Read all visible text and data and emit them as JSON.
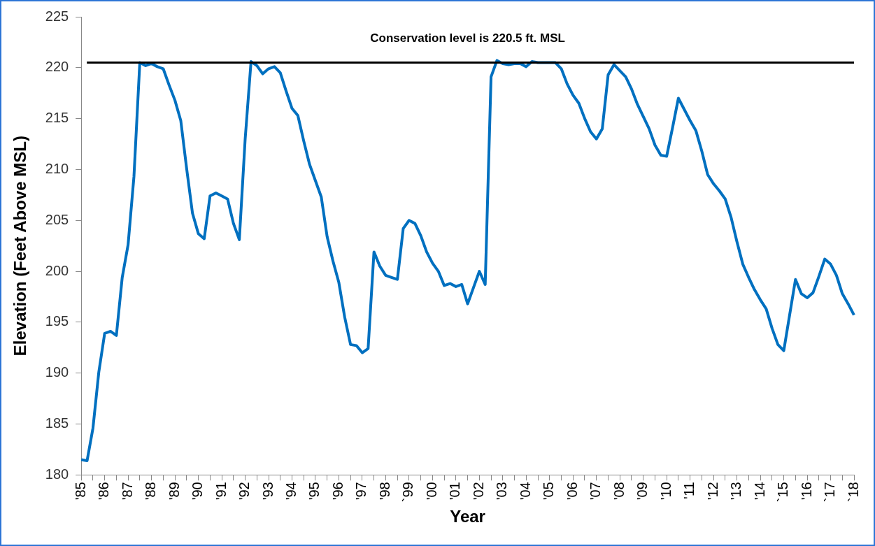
{
  "chart_data": {
    "type": "line",
    "xlabel": "Year",
    "ylabel": "Elevation (Feet Above MSL)",
    "categories": [
      "'85",
      null,
      null,
      null,
      "'86",
      null,
      null,
      null,
      "'87",
      null,
      null,
      null,
      "'88",
      null,
      null,
      null,
      "'89",
      null,
      null,
      null,
      "'90",
      null,
      null,
      null,
      "'91",
      null,
      null,
      null,
      "'92",
      null,
      null,
      null,
      "'93",
      null,
      null,
      null,
      "'94",
      null,
      null,
      null,
      "'95",
      null,
      null,
      null,
      "'96",
      null,
      null,
      null,
      "'97",
      null,
      null,
      null,
      "'98",
      null,
      null,
      null,
      "`99",
      null,
      null,
      null,
      "'00",
      null,
      null,
      null,
      "'01",
      null,
      null,
      null,
      "'02",
      null,
      null,
      null,
      "'03",
      null,
      null,
      null,
      "'04",
      null,
      null,
      null,
      "'05",
      null,
      null,
      null,
      "'06",
      null,
      null,
      null,
      "'07",
      null,
      null,
      null,
      "'08",
      null,
      null,
      null,
      "'09",
      null,
      null,
      null,
      "'10",
      null,
      null,
      null,
      "'11",
      null,
      null,
      null,
      "'12",
      null,
      null,
      null,
      "'13",
      null,
      null,
      null,
      "'14",
      null,
      null,
      null,
      "`15",
      null,
      null,
      null,
      "'16",
      null,
      null,
      null,
      "`17",
      null,
      null,
      null,
      "`18"
    ],
    "series": [
      {
        "color": "#0070c0",
        "values": [
          181.5,
          181.4,
          184.6,
          190.1,
          193.9,
          194.1,
          193.7,
          199.4,
          202.6,
          209.3,
          220.5,
          220.2,
          220.4,
          220.1,
          219.9,
          218.3,
          216.8,
          214.8,
          210.1,
          205.7,
          203.7,
          203.2,
          207.4,
          207.7,
          207.4,
          207.1,
          204.7,
          203.1,
          213.0,
          220.6,
          220.2,
          219.4,
          219.9,
          220.1,
          219.5,
          217.7,
          216.0,
          215.3,
          212.8,
          210.5,
          208.9,
          207.3,
          203.4,
          201.0,
          198.9,
          195.5,
          192.8,
          192.7,
          192.0,
          192.4,
          201.9,
          200.5,
          199.6,
          199.4,
          199.2,
          204.2,
          205.0,
          204.7,
          203.5,
          201.9,
          200.8,
          200.0,
          198.6,
          198.8,
          198.5,
          198.7,
          196.8,
          198.4,
          200.0,
          198.7,
          219.1,
          220.7,
          220.4,
          220.3,
          220.4,
          220.4,
          220.1,
          220.6,
          220.5,
          220.5,
          220.5,
          220.5,
          219.9,
          218.4,
          217.3,
          216.5,
          215.0,
          213.7,
          213.0,
          214.0,
          219.3,
          220.3,
          219.7,
          219.1,
          217.9,
          216.4,
          215.2,
          214.0,
          212.4,
          211.4,
          211.3,
          214.1,
          217.0,
          215.9,
          214.8,
          213.8,
          211.8,
          209.5,
          208.6,
          207.9,
          207.1,
          205.3,
          202.9,
          200.7,
          199.4,
          198.2,
          197.2,
          196.3,
          194.4,
          192.8,
          192.2,
          195.7,
          199.2,
          197.8,
          197.4,
          197.9,
          199.5,
          201.2,
          200.7,
          199.6,
          197.8,
          196.8,
          195.7
        ]
      }
    ],
    "ylim": [
      180,
      225
    ],
    "yticks": [
      180,
      185,
      190,
      195,
      200,
      205,
      210,
      215,
      220,
      225
    ],
    "ref_lines": [
      {
        "axis": "y",
        "value": 220.5,
        "label": "Conservation level is 220.5 ft. MSL",
        "color": "#000000"
      }
    ],
    "marker": "none",
    "line_style": "solid"
  }
}
